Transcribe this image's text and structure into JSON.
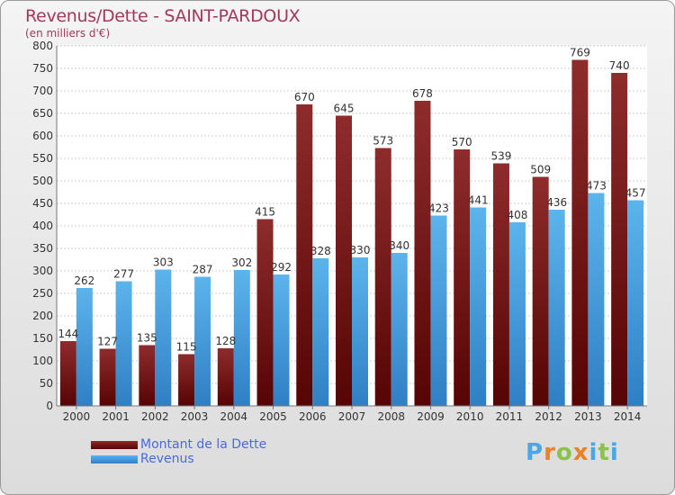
{
  "header": {
    "title": "Revenus/Dette - SAINT-PARDOUX",
    "subtitle": "(en milliers d'€)"
  },
  "legend": {
    "items": [
      {
        "label": "Montant de la Dette",
        "color": "#7a1515"
      },
      {
        "label": "Revenus",
        "color": "#4aa6e4"
      }
    ]
  },
  "logo": {
    "letters": [
      "P",
      "r",
      "o",
      "x",
      "i",
      "t",
      "i"
    ],
    "colors": [
      "#4aa6e4",
      "#e8832a",
      "#8bc34a",
      "#e8832a",
      "#4aa6e4",
      "#8bc34a",
      "#4aa6e4"
    ]
  },
  "chart_data": {
    "type": "bar",
    "categories": [
      "2000",
      "2001",
      "2002",
      "2003",
      "2004",
      "2005",
      "2006",
      "2007",
      "2008",
      "2009",
      "2010",
      "2011",
      "2012",
      "2013",
      "2014"
    ],
    "series": [
      {
        "name": "Montant de la Dette",
        "values": [
          144,
          127,
          135,
          115,
          128,
          415,
          670,
          645,
          573,
          678,
          570,
          539,
          509,
          769,
          740
        ]
      },
      {
        "name": "Revenus",
        "values": [
          262,
          277,
          303,
          287,
          302,
          292,
          328,
          330,
          340,
          423,
          441,
          408,
          436,
          473,
          457
        ]
      }
    ],
    "title": "Revenus/Dette - SAINT-PARDOUX",
    "ylabel": "(en milliers d'€)",
    "ylim": [
      0,
      800
    ],
    "yticks": [
      0,
      50,
      100,
      150,
      200,
      250,
      300,
      350,
      400,
      450,
      500,
      550,
      600,
      650,
      700,
      750,
      800
    ],
    "grid": true,
    "legend": "bottom-left"
  }
}
